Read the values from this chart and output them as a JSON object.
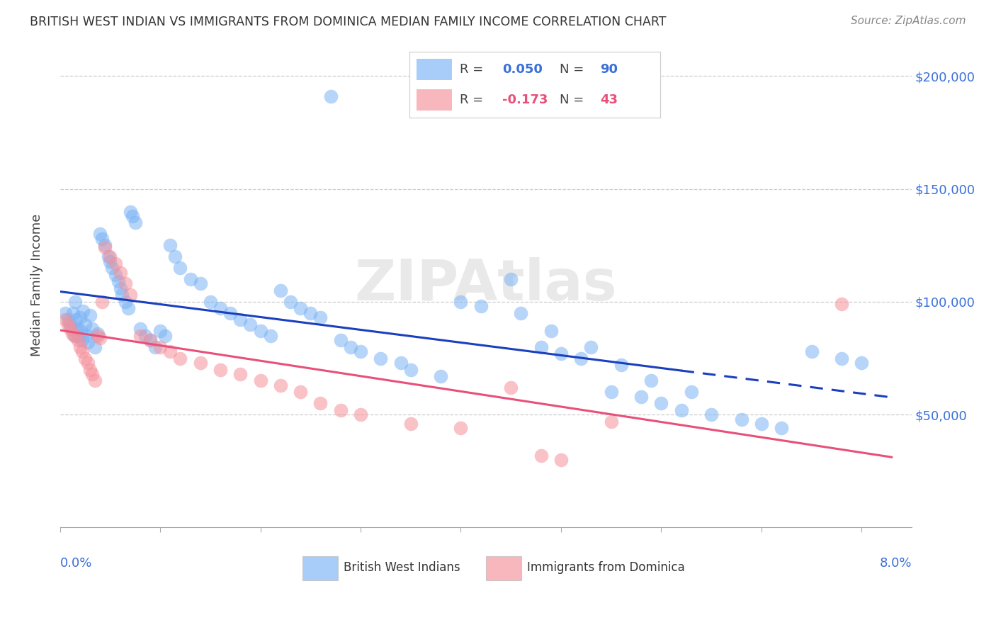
{
  "title": "BRITISH WEST INDIAN VS IMMIGRANTS FROM DOMINICA MEDIAN FAMILY INCOME CORRELATION CHART",
  "source": "Source: ZipAtlas.com",
  "ylabel": "Median Family Income",
  "series1_label": "British West Indians",
  "series2_label": "Immigrants from Dominica",
  "series1_R": 0.05,
  "series1_N": 90,
  "series2_R": -0.173,
  "series2_N": 43,
  "series1_color": "#7ab3f5",
  "series2_color": "#f5909a",
  "trendline1_color": "#1a3fbf",
  "trendline2_color": "#e8507a",
  "background_color": "#ffffff",
  "xlim": [
    0.0,
    8.5
  ],
  "ylim": [
    0,
    215000
  ],
  "yticks": [
    50000,
    100000,
    150000,
    200000
  ],
  "ytick_labels": [
    "$50,000",
    "$100,000",
    "$150,000",
    "$200,000"
  ],
  "watermark_text": "ZIPAtlas",
  "blue_x": [
    0.05,
    0.08,
    0.1,
    0.12,
    0.13,
    0.14,
    0.15,
    0.16,
    0.17,
    0.18,
    0.2,
    0.21,
    0.22,
    0.23,
    0.25,
    0.27,
    0.28,
    0.3,
    0.32,
    0.35,
    0.38,
    0.4,
    0.42,
    0.45,
    0.48,
    0.5,
    0.52,
    0.55,
    0.58,
    0.6,
    0.62,
    0.65,
    0.68,
    0.7,
    0.72,
    0.75,
    0.8,
    0.85,
    0.9,
    0.95,
    1.0,
    1.05,
    1.1,
    1.15,
    1.2,
    1.3,
    1.4,
    1.5,
    1.6,
    1.7,
    1.8,
    1.9,
    2.0,
    2.1,
    2.2,
    2.3,
    2.4,
    2.5,
    2.6,
    2.7,
    2.8,
    2.9,
    3.0,
    3.2,
    3.4,
    3.5,
    3.8,
    4.0,
    4.2,
    4.5,
    4.8,
    5.0,
    5.2,
    5.5,
    5.8,
    6.0,
    6.2,
    6.5,
    6.8,
    7.0,
    7.2,
    7.5,
    7.8,
    8.0,
    4.6,
    4.9,
    5.3,
    5.6,
    5.9,
    6.3
  ],
  "blue_y": [
    95000,
    92000,
    90000,
    88000,
    95000,
    85000,
    100000,
    92000,
    88000,
    85000,
    93000,
    87000,
    83000,
    96000,
    90000,
    85000,
    82000,
    94000,
    88000,
    80000,
    86000,
    130000,
    128000,
    125000,
    120000,
    118000,
    115000,
    112000,
    109000,
    106000,
    103000,
    100000,
    97000,
    140000,
    138000,
    135000,
    88000,
    85000,
    83000,
    80000,
    87000,
    85000,
    125000,
    120000,
    115000,
    110000,
    108000,
    100000,
    97000,
    95000,
    92000,
    90000,
    87000,
    85000,
    105000,
    100000,
    97000,
    95000,
    93000,
    191000,
    83000,
    80000,
    78000,
    75000,
    73000,
    70000,
    67000,
    100000,
    98000,
    110000,
    80000,
    77000,
    75000,
    60000,
    58000,
    55000,
    52000,
    50000,
    48000,
    46000,
    44000,
    78000,
    75000,
    73000,
    95000,
    87000,
    80000,
    72000,
    65000,
    60000
  ],
  "pink_x": [
    0.05,
    0.08,
    0.1,
    0.12,
    0.15,
    0.18,
    0.2,
    0.22,
    0.25,
    0.28,
    0.3,
    0.32,
    0.35,
    0.38,
    0.4,
    0.42,
    0.45,
    0.5,
    0.55,
    0.6,
    0.65,
    0.7,
    0.8,
    0.9,
    1.0,
    1.1,
    1.2,
    1.4,
    1.6,
    1.8,
    2.0,
    2.2,
    2.4,
    2.6,
    2.8,
    3.0,
    3.5,
    4.0,
    4.5,
    4.8,
    5.0,
    5.5,
    7.8
  ],
  "pink_y": [
    92000,
    90000,
    88000,
    86000,
    85000,
    83000,
    80000,
    78000,
    75000,
    73000,
    70000,
    68000,
    65000,
    85000,
    84000,
    100000,
    124000,
    120000,
    117000,
    113000,
    108000,
    103000,
    85000,
    83000,
    80000,
    78000,
    75000,
    73000,
    70000,
    68000,
    65000,
    63000,
    60000,
    55000,
    52000,
    50000,
    46000,
    44000,
    62000,
    32000,
    30000,
    47000,
    99000
  ]
}
